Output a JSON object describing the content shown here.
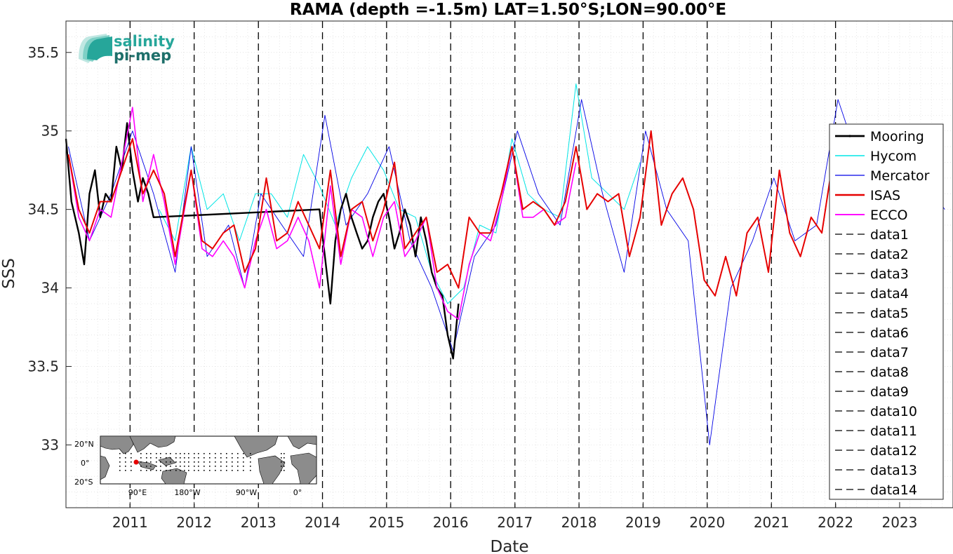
{
  "chart_data": {
    "type": "line",
    "title": "RAMA (depth =-1.5m) LAT=1.50°S;LON=90.00°E",
    "xlabel": "Date",
    "ylabel": "SSS",
    "xlim": [
      "2010-01-01",
      "2023-11-01"
    ],
    "ylim": [
      32.6,
      35.7
    ],
    "grid": true,
    "legend_position": "right",
    "x_ticks": [
      "2011",
      "2012",
      "2013",
      "2014",
      "2015",
      "2016",
      "2017",
      "2018",
      "2019",
      "2020",
      "2021",
      "2022",
      "2023"
    ],
    "y_ticks": [
      "33",
      "33.5",
      "34",
      "34.5",
      "35",
      "35.5"
    ],
    "year_lines": [
      "2011",
      "2012",
      "2013",
      "2014",
      "2015",
      "2016",
      "2017",
      "2018",
      "2019",
      "2020",
      "2021",
      "2022"
    ],
    "legend": [
      "Mooring",
      "Hycom",
      "Mercator",
      "ISAS",
      "ECCO",
      "data1",
      "data2",
      "data3",
      "data4",
      "data5",
      "data6",
      "data7",
      "data8",
      "data9",
      "data10",
      "data11",
      "data12",
      "data13",
      "data14"
    ],
    "series": [
      {
        "name": "Mooring",
        "color": "#000000",
        "x": [
          "2010-01-01",
          "2010-02-01",
          "2010-03-15",
          "2010-04-15",
          "2010-05-15",
          "2010-06-15",
          "2010-07-15",
          "2010-08-15",
          "2010-09-15",
          "2010-10-15",
          "2010-11-15",
          "2010-12-15",
          "2011-01-15",
          "2011-02-15",
          "2011-03-15",
          "2011-04-15",
          "2011-05-15",
          "2013-12-15",
          "2014-01-15",
          "2014-02-15",
          "2014-03-15",
          "2014-04-15",
          "2014-05-15",
          "2014-06-15",
          "2014-07-15",
          "2014-08-15",
          "2014-09-15",
          "2014-10-15",
          "2014-11-15",
          "2014-12-15",
          "2015-01-15",
          "2015-02-15",
          "2015-03-15",
          "2015-04-15",
          "2015-05-15",
          "2015-06-15",
          "2015-07-15",
          "2015-08-15",
          "2015-09-15",
          "2015-10-15",
          "2015-11-15",
          "2015-12-15",
          "2016-01-15",
          "2016-02-15"
        ],
        "values": [
          34.95,
          34.55,
          34.35,
          34.15,
          34.6,
          34.75,
          34.45,
          34.6,
          34.55,
          34.9,
          34.75,
          35.05,
          34.75,
          34.55,
          34.7,
          34.6,
          34.45,
          34.5,
          34.2,
          33.9,
          34.3,
          34.5,
          34.6,
          34.45,
          34.35,
          34.25,
          34.3,
          34.45,
          34.55,
          34.6,
          34.45,
          34.25,
          34.35,
          34.5,
          34.4,
          34.2,
          34.45,
          34.3,
          34.1,
          34.0,
          33.95,
          33.7,
          33.55,
          33.9
        ]
      },
      {
        "name": "Hycom",
        "color": "#00e5e5",
        "x": [
          "2011-06-15",
          "2011-09-15",
          "2011-12-15",
          "2012-03-15",
          "2012-06-15",
          "2012-09-15",
          "2012-12-15",
          "2013-03-15",
          "2013-06-15",
          "2013-09-15",
          "2013-12-15",
          "2014-03-15",
          "2014-06-15",
          "2014-09-15",
          "2014-12-15",
          "2015-03-15",
          "2015-06-15",
          "2015-09-15",
          "2015-12-15",
          "2016-03-15",
          "2016-06-15",
          "2016-09-15",
          "2016-12-15",
          "2017-03-15",
          "2017-06-15",
          "2017-09-15",
          "2017-12-15",
          "2018-03-15",
          "2018-06-15",
          "2018-09-15",
          "2018-12-15"
        ],
        "values": [
          34.5,
          34.3,
          34.9,
          34.5,
          34.6,
          34.3,
          34.6,
          34.6,
          34.45,
          34.85,
          34.65,
          34.4,
          34.7,
          34.9,
          34.75,
          34.5,
          34.45,
          34.1,
          33.9,
          34.0,
          34.4,
          34.35,
          34.95,
          34.6,
          34.5,
          34.45,
          35.3,
          34.7,
          34.6,
          34.5,
          34.8
        ]
      },
      {
        "name": "Mercator",
        "color": "#0000e6",
        "x": [
          "2010-01-15",
          "2010-05-15",
          "2010-09-15",
          "2011-01-15",
          "2011-05-15",
          "2011-09-15",
          "2011-12-15",
          "2012-03-15",
          "2012-07-15",
          "2012-10-15",
          "2013-01-15",
          "2013-05-15",
          "2013-09-15",
          "2014-01-15",
          "2014-05-15",
          "2014-09-15",
          "2015-01-15",
          "2015-05-15",
          "2015-09-15",
          "2016-01-15",
          "2016-05-15",
          "2016-09-15",
          "2017-01-15",
          "2017-05-15",
          "2017-09-15",
          "2018-01-15",
          "2018-05-15",
          "2018-09-15",
          "2019-01-15",
          "2019-05-15",
          "2019-09-15",
          "2020-01-15",
          "2020-05-15",
          "2020-09-15",
          "2021-01-15",
          "2021-05-15",
          "2021-09-15",
          "2022-01-15",
          "2022-05-15",
          "2022-09-15",
          "2023-01-15",
          "2023-05-15",
          "2023-09-15"
        ],
        "values": [
          34.9,
          34.3,
          34.6,
          35.0,
          34.6,
          34.1,
          34.9,
          34.2,
          34.4,
          34.0,
          34.6,
          34.4,
          34.2,
          35.1,
          34.4,
          34.6,
          34.9,
          34.3,
          34.0,
          33.6,
          34.2,
          34.4,
          35.0,
          34.6,
          34.4,
          35.2,
          34.6,
          34.1,
          35.0,
          34.5,
          34.3,
          33.0,
          34.0,
          34.3,
          34.7,
          34.3,
          34.4,
          35.2,
          34.8,
          34.6,
          34.9,
          34.7,
          34.5
        ]
      },
      {
        "name": "ISAS",
        "color": "#e60000",
        "x": [
          "2010-01-15",
          "2010-03-15",
          "2010-05-15",
          "2010-07-15",
          "2010-09-15",
          "2010-11-15",
          "2011-01-15",
          "2011-03-15",
          "2011-05-15",
          "2011-07-15",
          "2011-09-15",
          "2011-12-15",
          "2012-02-15",
          "2012-04-15",
          "2012-06-15",
          "2012-08-15",
          "2012-10-15",
          "2012-12-15",
          "2013-02-15",
          "2013-04-15",
          "2013-06-15",
          "2013-08-15",
          "2013-10-15",
          "2013-12-15",
          "2014-02-15",
          "2014-04-15",
          "2014-06-15",
          "2014-08-15",
          "2014-10-15",
          "2014-12-15",
          "2015-02-15",
          "2015-04-15",
          "2015-06-15",
          "2015-08-15",
          "2015-10-15",
          "2015-12-15",
          "2016-02-15",
          "2016-04-15",
          "2016-06-15",
          "2016-08-15",
          "2016-10-15",
          "2016-12-15",
          "2017-02-15",
          "2017-04-15",
          "2017-06-15",
          "2017-08-15",
          "2017-10-15",
          "2017-12-15",
          "2018-02-15",
          "2018-04-15",
          "2018-06-15",
          "2018-08-15",
          "2018-10-15",
          "2018-12-15",
          "2019-02-15",
          "2019-04-15",
          "2019-06-15",
          "2019-08-15",
          "2019-10-15",
          "2019-12-15",
          "2020-02-15",
          "2020-04-15",
          "2020-06-15",
          "2020-08-15",
          "2020-10-15",
          "2020-12-15",
          "2021-02-15",
          "2021-04-15",
          "2021-06-15",
          "2021-08-15",
          "2021-10-15",
          "2021-12-15"
        ],
        "values": [
          34.85,
          34.5,
          34.35,
          34.55,
          34.55,
          34.75,
          34.95,
          34.6,
          34.75,
          34.6,
          34.2,
          34.75,
          34.3,
          34.25,
          34.35,
          34.4,
          34.1,
          34.25,
          34.7,
          34.3,
          34.35,
          34.55,
          34.4,
          34.25,
          34.75,
          34.2,
          34.5,
          34.55,
          34.3,
          34.5,
          34.8,
          34.25,
          34.35,
          34.45,
          34.1,
          34.15,
          34.0,
          34.45,
          34.35,
          34.35,
          34.6,
          34.9,
          34.5,
          34.55,
          34.5,
          34.4,
          34.55,
          34.9,
          34.5,
          34.6,
          34.55,
          34.6,
          34.2,
          34.45,
          35.0,
          34.4,
          34.6,
          34.7,
          34.5,
          34.05,
          33.95,
          34.2,
          33.95,
          34.35,
          34.45,
          34.1,
          34.75,
          34.35,
          34.2,
          34.45,
          34.35,
          34.8
        ]
      },
      {
        "name": "ECCO",
        "color": "#ff00ff",
        "x": [
          "2010-01-15",
          "2010-03-15",
          "2010-05-15",
          "2010-07-15",
          "2010-09-15",
          "2010-11-15",
          "2011-01-15",
          "2011-03-15",
          "2011-05-15",
          "2011-07-15",
          "2011-09-15",
          "2011-12-15",
          "2012-02-15",
          "2012-04-15",
          "2012-06-15",
          "2012-08-15",
          "2012-10-15",
          "2012-12-15",
          "2013-02-15",
          "2013-04-15",
          "2013-06-15",
          "2013-08-15",
          "2013-10-15",
          "2013-12-15",
          "2014-02-15",
          "2014-04-15",
          "2014-06-15",
          "2014-08-15",
          "2014-10-15",
          "2014-12-15",
          "2015-02-15",
          "2015-04-15",
          "2015-06-15",
          "2015-08-15",
          "2015-10-15",
          "2015-12-15",
          "2016-02-15",
          "2016-04-15",
          "2016-06-15",
          "2016-08-15",
          "2016-10-15",
          "2016-12-15",
          "2017-02-15",
          "2017-04-15",
          "2017-06-15",
          "2017-08-15",
          "2017-10-15",
          "2017-12-15"
        ],
        "values": [
          34.85,
          34.45,
          34.3,
          34.5,
          34.45,
          34.8,
          35.15,
          34.55,
          34.85,
          34.55,
          34.15,
          34.75,
          34.25,
          34.2,
          34.3,
          34.2,
          34.0,
          34.3,
          34.5,
          34.25,
          34.3,
          34.45,
          34.3,
          34.0,
          34.65,
          34.15,
          34.5,
          34.45,
          34.2,
          34.45,
          34.55,
          34.2,
          34.3,
          34.45,
          34.0,
          33.85,
          33.8,
          34.15,
          34.35,
          34.3,
          34.55,
          34.9,
          34.45,
          34.45,
          34.5,
          34.4,
          34.45,
          34.8
        ]
      }
    ]
  },
  "logo": {
    "line1": "salinity",
    "line2": "pi-mep"
  },
  "inset_map": {
    "lat_labels": [
      "20°N",
      "0°",
      "20°S"
    ],
    "lon_labels": [
      "90°E",
      "180°W",
      "90°W",
      "0°"
    ]
  }
}
